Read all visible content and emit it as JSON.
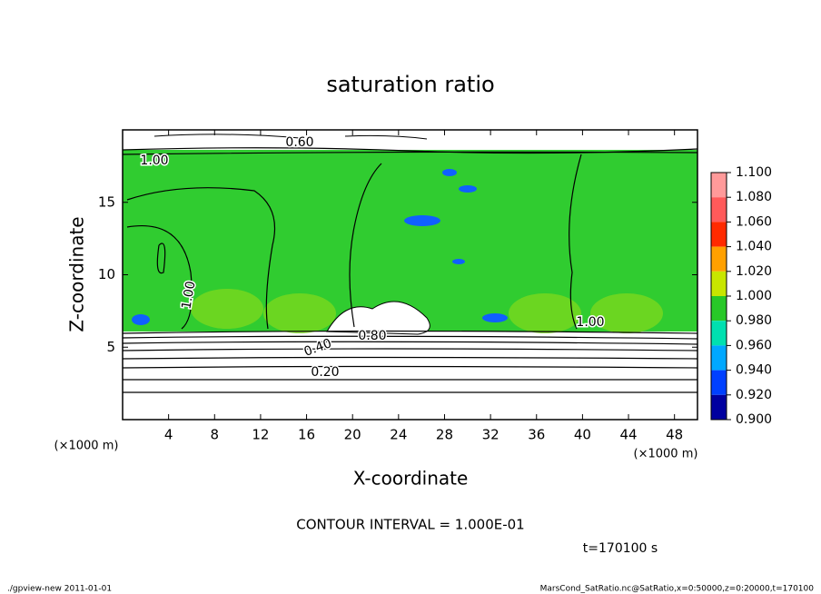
{
  "chart_data": {
    "type": "contour",
    "title": "saturation ratio",
    "x_label": "X-coordinate",
    "y_label": "Z-coordinate",
    "x_unit_left": "(×1000 m)",
    "x_unit_right": "(×1000 m)",
    "xlim": [
      0,
      50
    ],
    "ylim": [
      0,
      20
    ],
    "xticks": [
      4,
      8,
      12,
      16,
      20,
      24,
      28,
      32,
      36,
      40,
      44,
      48
    ],
    "yticks": [
      5,
      10,
      15
    ],
    "colorbar": {
      "ticks": [
        {
          "value": 1.1,
          "label": "1.100"
        },
        {
          "value": 1.08,
          "label": "1.080"
        },
        {
          "value": 1.06,
          "label": "1.060"
        },
        {
          "value": 1.04,
          "label": "1.040"
        },
        {
          "value": 1.02,
          "label": "1.020"
        },
        {
          "value": 1.0,
          "label": "1.000"
        },
        {
          "value": 0.98,
          "label": "0.980"
        },
        {
          "value": 0.96,
          "label": "0.960"
        },
        {
          "value": 0.94,
          "label": "0.940"
        },
        {
          "value": 0.92,
          "label": "0.920"
        },
        {
          "value": 0.9,
          "label": "0.900"
        }
      ],
      "colors": [
        "#ff9a9a",
        "#ff5a5a",
        "#ff2a00",
        "#ffa000",
        "#c8e600",
        "#28c828",
        "#00e0b0",
        "#00a8ff",
        "#0040ff",
        "#0000a0"
      ]
    },
    "contour_labels": [
      "0.60",
      "1.00",
      "1.00",
      "0.80",
      "0.20",
      "1.00",
      "0.40"
    ],
    "contour_interval": "CONTOUR INTERVAL = 1.000E-01",
    "time_label": "t=170100 s",
    "footer_left": "./gpview-new  2011-01-01",
    "footer_right": "MarsCond_SatRatio.nc@SatRatio,x=0:50000,z=0:20000,t=170100"
  }
}
